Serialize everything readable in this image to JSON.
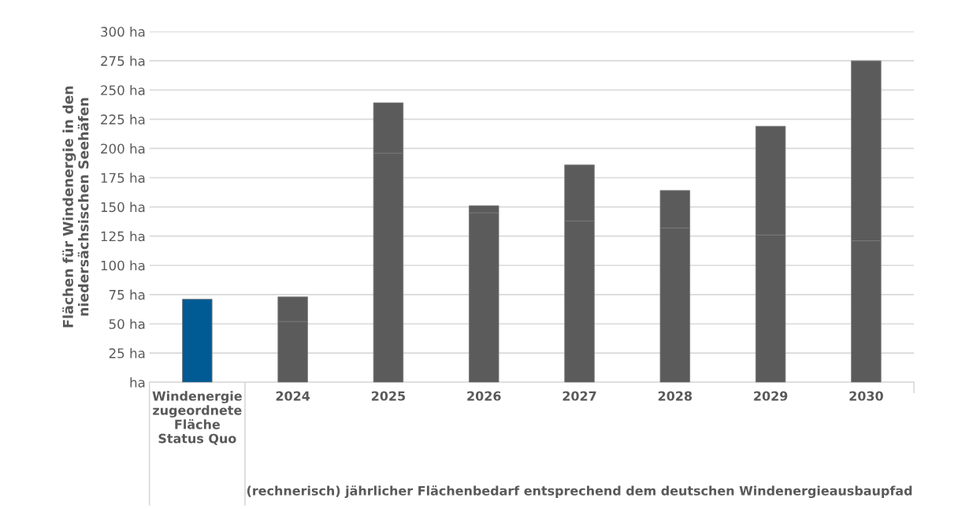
{
  "chart_data": {
    "type": "bar",
    "stacked": true,
    "ylabel": "Flächen für Windenergie in den\nniedersächsischen Seehäfen",
    "categories": [
      "Windenergie\nzugeordnete\nFläche\nStatus Quo",
      "2024",
      "2025",
      "2026",
      "2027",
      "2028",
      "2029",
      "2030"
    ],
    "series": [
      {
        "colors": [
          "#005a94",
          "#5b5b5b",
          "#5b5b5b",
          "#5b5b5b",
          "#5b5b5b",
          "#5b5b5b",
          "#5b5b5b",
          "#5b5b5b"
        ],
        "values": [
          71,
          52,
          196,
          145,
          138,
          132,
          126,
          121
        ]
      },
      {
        "color": "#5b5b5b",
        "values": [
          null,
          21,
          43,
          6,
          48,
          32,
          93,
          154
        ]
      }
    ],
    "ylim": [
      0,
      300
    ],
    "yticks": [
      {
        "value": 0,
        "label": "ha"
      },
      {
        "value": 25,
        "label": "25 ha"
      },
      {
        "value": 50,
        "label": "50 ha"
      },
      {
        "value": 75,
        "label": "75 ha"
      },
      {
        "value": 100,
        "label": "100 ha"
      },
      {
        "value": 125,
        "label": "125 ha"
      },
      {
        "value": 150,
        "label": "150 ha"
      },
      {
        "value": 175,
        "label": "175 ha"
      },
      {
        "value": 200,
        "label": "200 ha"
      },
      {
        "value": 225,
        "label": "225 ha"
      },
      {
        "value": 250,
        "label": "250 ha"
      },
      {
        "value": 275,
        "label": "275 ha"
      },
      {
        "value": 300,
        "label": "300 ha"
      }
    ],
    "grid": "y",
    "annotations": [
      "(rechnerisch) jährlicher Flächenbedarf entsprechend dem deutschen Windenergieausbaupfad"
    ]
  }
}
